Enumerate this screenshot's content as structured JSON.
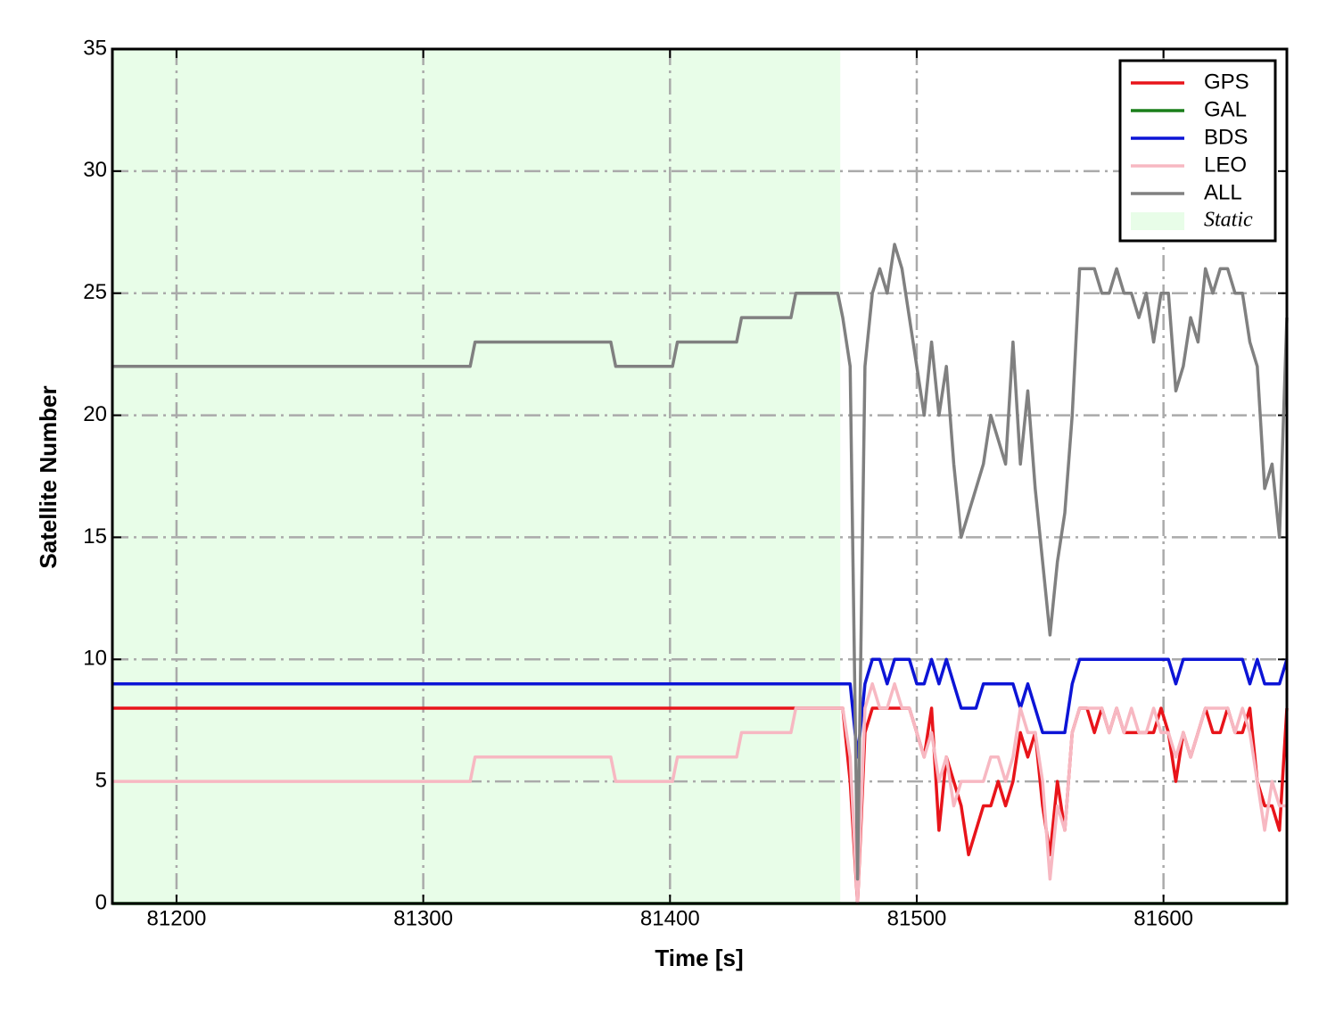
{
  "chart_data": {
    "type": "line",
    "xlabel": "Time [s]",
    "ylabel": "Satellite Number",
    "x": [
      81174,
      81319,
      81321,
      81376,
      81378,
      81401,
      81403,
      81427,
      81429,
      81449,
      81451,
      81468,
      81470,
      81473,
      81476,
      81479,
      81482,
      81485,
      81488,
      81491,
      81494,
      81497,
      81500,
      81503,
      81506,
      81509,
      81512,
      81515,
      81518,
      81521,
      81524,
      81527,
      81530,
      81533,
      81536,
      81539,
      81542,
      81545,
      81548,
      81551,
      81554,
      81557,
      81560,
      81563,
      81566,
      81569,
      81572,
      81575,
      81578,
      81581,
      81584,
      81587,
      81590,
      81593,
      81596,
      81599,
      81602,
      81605,
      81608,
      81611,
      81614,
      81617,
      81620,
      81623,
      81626,
      81629,
      81632,
      81635,
      81638,
      81641,
      81644,
      81647,
      81650
    ],
    "series": [
      {
        "name": "GPS",
        "color": "#e8141a",
        "values": [
          8,
          8,
          8,
          8,
          8,
          8,
          8,
          8,
          8,
          8,
          8,
          8,
          8,
          5,
          0,
          7,
          8,
          8,
          8,
          8,
          8,
          8,
          7,
          6,
          8,
          3,
          6,
          5,
          4,
          2,
          3,
          4,
          4,
          5,
          4,
          5,
          7,
          6,
          7,
          4,
          2,
          5,
          3,
          7,
          8,
          8,
          7,
          8,
          7,
          8,
          7,
          7,
          7,
          7,
          7,
          8,
          7,
          5,
          7,
          6,
          7,
          8,
          7,
          7,
          8,
          7,
          7,
          8,
          5,
          4,
          4,
          3,
          8
        ]
      },
      {
        "name": "GAL",
        "color": "#1a7f1a",
        "values": [
          0,
          0,
          0,
          0,
          0,
          0,
          0,
          0,
          0,
          0,
          0,
          0,
          0,
          0,
          0,
          0,
          0,
          0,
          0,
          0,
          0,
          0,
          0,
          0,
          0,
          0,
          0,
          0,
          0,
          0,
          0,
          0,
          0,
          0,
          0,
          0,
          0,
          0,
          0,
          0,
          0,
          0,
          0,
          0,
          0,
          0,
          0,
          0,
          0,
          0,
          0,
          0,
          0,
          0,
          0,
          0,
          0,
          0,
          0,
          0,
          0,
          0,
          0,
          0,
          0,
          0,
          0,
          0,
          0,
          0,
          0,
          0,
          0
        ]
      },
      {
        "name": "BDS",
        "color": "#0c14d6",
        "values": [
          9,
          9,
          9,
          9,
          9,
          9,
          9,
          9,
          9,
          9,
          9,
          9,
          9,
          9,
          6,
          9,
          10,
          10,
          9,
          10,
          10,
          10,
          9,
          9,
          10,
          9,
          10,
          9,
          8,
          8,
          8,
          9,
          9,
          9,
          9,
          9,
          8,
          9,
          8,
          7,
          7,
          7,
          7,
          9,
          10,
          10,
          10,
          10,
          10,
          10,
          10,
          10,
          10,
          10,
          10,
          10,
          10,
          9,
          10,
          10,
          10,
          10,
          10,
          10,
          10,
          10,
          10,
          9,
          10,
          9,
          9,
          9,
          10
        ]
      },
      {
        "name": "LEO",
        "color": "#f7b8c2",
        "values": [
          5,
          5,
          6,
          6,
          5,
          5,
          6,
          6,
          7,
          7,
          8,
          8,
          8,
          6,
          0,
          8,
          9,
          8,
          8,
          9,
          8,
          8,
          7,
          6,
          7,
          5,
          6,
          4,
          5,
          5,
          5,
          5,
          6,
          6,
          5,
          6,
          8,
          7,
          7,
          5,
          1,
          4,
          3,
          7,
          8,
          8,
          8,
          8,
          7,
          8,
          7,
          8,
          7,
          7,
          8,
          7,
          7,
          6,
          7,
          6,
          7,
          8,
          8,
          8,
          8,
          7,
          8,
          7,
          5,
          3,
          5,
          4,
          4
        ]
      },
      {
        "name": "ALL",
        "color": "#808080",
        "values": [
          22,
          22,
          23,
          23,
          22,
          22,
          23,
          23,
          24,
          24,
          25,
          25,
          24,
          22,
          1,
          22,
          25,
          26,
          25,
          27,
          26,
          24,
          22,
          20,
          23,
          20,
          22,
          18,
          15,
          16,
          17,
          18,
          20,
          19,
          18,
          23,
          18,
          21,
          17,
          14,
          11,
          14,
          16,
          20,
          26,
          26,
          26,
          25,
          25,
          26,
          25,
          25,
          24,
          25,
          23,
          25,
          25,
          21,
          22,
          24,
          23,
          26,
          25,
          26,
          26,
          25,
          25,
          23,
          22,
          17,
          18,
          15,
          24
        ]
      }
    ],
    "static_region": {
      "label": "Static",
      "xlim": [
        81174,
        81469
      ],
      "color": "#e8fde8"
    },
    "xlim": [
      81174,
      81650
    ],
    "xticks": [
      81200,
      81300,
      81400,
      81500,
      81600
    ],
    "ylim": [
      0,
      35
    ],
    "yticks": [
      0,
      5,
      10,
      15,
      20,
      25,
      30,
      35
    ],
    "grid": true,
    "legend": "upper right"
  }
}
